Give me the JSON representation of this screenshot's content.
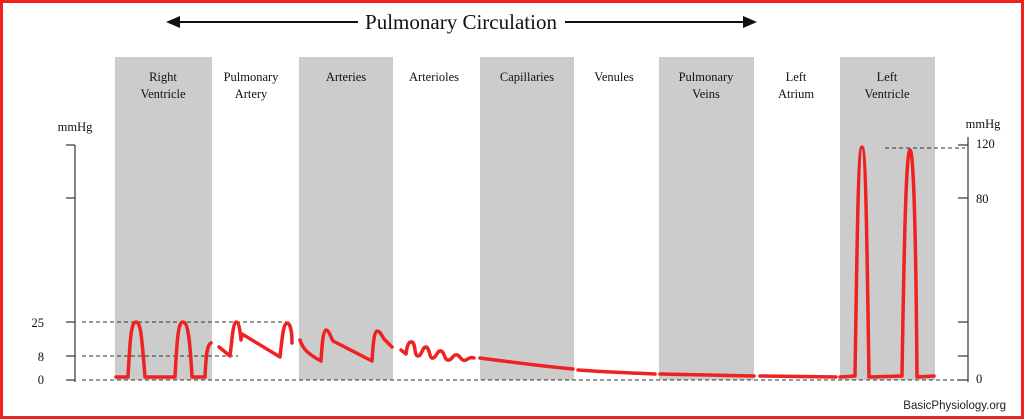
{
  "title": "Pulmonary Circulation",
  "regions": [
    {
      "label_line1": "Right",
      "label_line2": "Ventricle",
      "shaded": true
    },
    {
      "label_line1": "Pulmonary",
      "label_line2": "Artery",
      "shaded": false
    },
    {
      "label_line1": "Arteries",
      "label_line2": "",
      "shaded": true
    },
    {
      "label_line1": "Arterioles",
      "label_line2": "",
      "shaded": false
    },
    {
      "label_line1": "Capillaries",
      "label_line2": "",
      "shaded": true
    },
    {
      "label_line1": "Venules",
      "label_line2": "",
      "shaded": false
    },
    {
      "label_line1": "Pulmonary",
      "label_line2": "Veins",
      "shaded": true
    },
    {
      "label_line1": "Left",
      "label_line2": "Atrium",
      "shaded": false
    },
    {
      "label_line1": "Left",
      "label_line2": "Ventricle",
      "shaded": true
    }
  ],
  "left_axis": {
    "unit": "mmHg",
    "ticks": [
      "25",
      "8",
      "0"
    ]
  },
  "right_axis": {
    "unit": "mmHg",
    "ticks": [
      "120",
      "80",
      "0"
    ]
  },
  "watermark": "BasicPhysiology.org",
  "colors": {
    "waveform": "#ee2222",
    "border": "#ee2222",
    "shaded_column": "#cccccc"
  }
}
